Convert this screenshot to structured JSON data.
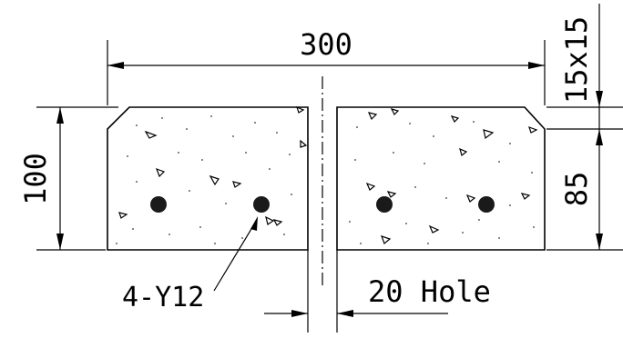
{
  "dimensions": {
    "width": "300",
    "height": "100",
    "chamfer": "15x15",
    "lower": "85",
    "hole": "20 Hole"
  },
  "rebar_note": "4-Y12",
  "colors": {
    "line": "#000000",
    "rebar": "#1a1a1a",
    "background": "#ffffff"
  }
}
